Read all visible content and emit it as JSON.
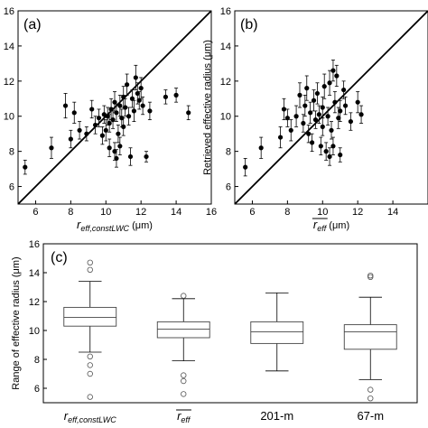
{
  "chart_data": [
    {
      "panel": "(a)",
      "type": "scatter",
      "xlabel": {
        "main": "r",
        "sub": "eff,constLWC",
        "unit": " (μm)"
      },
      "ylabel": "",
      "xlim": [
        5,
        16
      ],
      "ylim": [
        5,
        16
      ],
      "xticks": [
        6,
        8,
        10,
        12,
        14,
        16
      ],
      "yticks": [
        6,
        8,
        10,
        12,
        14,
        16
      ],
      "one_to_one_line": true,
      "points": [
        {
          "x": 5.4,
          "y": 7.1,
          "e": 0.4
        },
        {
          "x": 6.9,
          "y": 8.2,
          "e": 0.6
        },
        {
          "x": 7.7,
          "y": 10.6,
          "e": 0.7
        },
        {
          "x": 8.0,
          "y": 8.7,
          "e": 0.5
        },
        {
          "x": 8.2,
          "y": 10.2,
          "e": 0.6
        },
        {
          "x": 8.5,
          "y": 9.2,
          "e": 0.5
        },
        {
          "x": 8.9,
          "y": 9.0,
          "e": 0.4
        },
        {
          "x": 9.2,
          "y": 10.4,
          "e": 0.5
        },
        {
          "x": 9.4,
          "y": 9.5,
          "e": 0.5
        },
        {
          "x": 9.6,
          "y": 9.9,
          "e": 0.5
        },
        {
          "x": 9.8,
          "y": 8.9,
          "e": 0.5
        },
        {
          "x": 9.9,
          "y": 10.1,
          "e": 0.5
        },
        {
          "x": 10.0,
          "y": 9.2,
          "e": 0.6
        },
        {
          "x": 10.1,
          "y": 10.0,
          "e": 0.5
        },
        {
          "x": 10.2,
          "y": 8.2,
          "e": 0.5
        },
        {
          "x": 10.2,
          "y": 9.6,
          "e": 0.5
        },
        {
          "x": 10.3,
          "y": 10.4,
          "e": 0.6
        },
        {
          "x": 10.4,
          "y": 9.8,
          "e": 0.5
        },
        {
          "x": 10.5,
          "y": 10.8,
          "e": 0.6
        },
        {
          "x": 10.5,
          "y": 8.0,
          "e": 0.5
        },
        {
          "x": 10.6,
          "y": 7.6,
          "e": 0.5
        },
        {
          "x": 10.6,
          "y": 10.2,
          "e": 0.5
        },
        {
          "x": 10.7,
          "y": 9.0,
          "e": 0.5
        },
        {
          "x": 10.8,
          "y": 10.6,
          "e": 0.6
        },
        {
          "x": 10.8,
          "y": 8.3,
          "e": 0.5
        },
        {
          "x": 10.9,
          "y": 9.9,
          "e": 0.5
        },
        {
          "x": 11.0,
          "y": 11.1,
          "e": 0.6
        },
        {
          "x": 11.0,
          "y": 9.4,
          "e": 0.5
        },
        {
          "x": 11.1,
          "y": 10.5,
          "e": 0.5
        },
        {
          "x": 11.2,
          "y": 11.8,
          "e": 0.6
        },
        {
          "x": 11.3,
          "y": 10.0,
          "e": 0.5
        },
        {
          "x": 11.4,
          "y": 7.7,
          "e": 0.5
        },
        {
          "x": 11.5,
          "y": 11.0,
          "e": 0.5
        },
        {
          "x": 11.6,
          "y": 10.3,
          "e": 0.6
        },
        {
          "x": 11.7,
          "y": 12.2,
          "e": 0.7
        },
        {
          "x": 11.8,
          "y": 11.3,
          "e": 0.6
        },
        {
          "x": 11.9,
          "y": 10.9,
          "e": 0.5
        },
        {
          "x": 12.0,
          "y": 11.6,
          "e": 0.6
        },
        {
          "x": 12.1,
          "y": 10.6,
          "e": 0.5
        },
        {
          "x": 12.3,
          "y": 7.7,
          "e": 0.3
        },
        {
          "x": 12.5,
          "y": 10.3,
          "e": 0.5
        },
        {
          "x": 13.4,
          "y": 11.1,
          "e": 0.4
        },
        {
          "x": 14.0,
          "y": 11.2,
          "e": 0.4
        },
        {
          "x": 14.7,
          "y": 10.2,
          "e": 0.4
        }
      ]
    },
    {
      "panel": "(b)",
      "type": "scatter",
      "xlabel": {
        "main": "r",
        "sub": "eff",
        "unit": " (μm)",
        "overbar": true
      },
      "ylabel": "Retrieved effective radius (μm)",
      "xlim": [
        5,
        16
      ],
      "ylim": [
        5,
        16
      ],
      "xticks": [
        6,
        8,
        10,
        12,
        14
      ],
      "yticks": [
        6,
        8,
        10,
        12,
        14,
        16
      ],
      "one_to_one_line": true,
      "points": [
        {
          "x": 5.6,
          "y": 7.1,
          "e": 0.5
        },
        {
          "x": 6.5,
          "y": 8.2,
          "e": 0.6
        },
        {
          "x": 7.6,
          "y": 8.8,
          "e": 0.6
        },
        {
          "x": 7.8,
          "y": 10.4,
          "e": 0.6
        },
        {
          "x": 8.0,
          "y": 9.9,
          "e": 0.5
        },
        {
          "x": 8.2,
          "y": 9.2,
          "e": 0.6
        },
        {
          "x": 8.5,
          "y": 10.0,
          "e": 0.6
        },
        {
          "x": 8.7,
          "y": 11.2,
          "e": 0.7
        },
        {
          "x": 8.9,
          "y": 9.6,
          "e": 0.5
        },
        {
          "x": 9.0,
          "y": 10.6,
          "e": 0.6
        },
        {
          "x": 9.1,
          "y": 11.6,
          "e": 0.7
        },
        {
          "x": 9.2,
          "y": 9.0,
          "e": 0.5
        },
        {
          "x": 9.3,
          "y": 10.2,
          "e": 0.6
        },
        {
          "x": 9.5,
          "y": 10.9,
          "e": 0.6
        },
        {
          "x": 9.6,
          "y": 9.8,
          "e": 0.5
        },
        {
          "x": 9.7,
          "y": 11.3,
          "e": 0.6
        },
        {
          "x": 9.8,
          "y": 10.1,
          "e": 0.5
        },
        {
          "x": 9.9,
          "y": 8.3,
          "e": 0.5
        },
        {
          "x": 10.0,
          "y": 10.5,
          "e": 0.6
        },
        {
          "x": 10.0,
          "y": 9.4,
          "e": 0.5
        },
        {
          "x": 10.1,
          "y": 11.7,
          "e": 0.7
        },
        {
          "x": 10.2,
          "y": 8.0,
          "e": 0.5
        },
        {
          "x": 10.3,
          "y": 10.0,
          "e": 0.5
        },
        {
          "x": 10.4,
          "y": 7.7,
          "e": 0.5
        },
        {
          "x": 10.4,
          "y": 11.9,
          "e": 0.7
        },
        {
          "x": 10.5,
          "y": 9.2,
          "e": 0.5
        },
        {
          "x": 10.6,
          "y": 12.6,
          "e": 0.6
        },
        {
          "x": 10.7,
          "y": 10.8,
          "e": 0.6
        },
        {
          "x": 10.8,
          "y": 12.3,
          "e": 0.6
        },
        {
          "x": 10.9,
          "y": 9.9,
          "e": 0.6
        },
        {
          "x": 11.0,
          "y": 10.3,
          "e": 0.6
        },
        {
          "x": 11.0,
          "y": 7.8,
          "e": 0.4
        },
        {
          "x": 11.2,
          "y": 11.5,
          "e": 0.5
        },
        {
          "x": 11.3,
          "y": 10.6,
          "e": 0.5
        },
        {
          "x": 11.6,
          "y": 9.7,
          "e": 0.5
        },
        {
          "x": 12.0,
          "y": 10.8,
          "e": 0.6
        },
        {
          "x": 12.2,
          "y": 10.1,
          "e": 0.5
        },
        {
          "x": 10.6,
          "y": 8.3,
          "e": 0.5
        },
        {
          "x": 9.4,
          "y": 8.5,
          "e": 0.5
        }
      ]
    },
    {
      "panel": "(c)",
      "type": "box",
      "ylabel": "Range of effective radius (μm)",
      "ylim": [
        5,
        16
      ],
      "yticks": [
        6,
        8,
        10,
        12,
        14,
        16
      ],
      "boxes": [
        {
          "label": {
            "main": "r",
            "sub": "eff,constLWC"
          },
          "whisker_low": 8.5,
          "q1": 10.3,
          "median": 10.9,
          "q3": 11.6,
          "whisker_high": 13.4,
          "outliers": [
            5.4,
            7.0,
            7.6,
            8.2,
            14.2,
            14.7
          ]
        },
        {
          "label": {
            "main": "r",
            "sub": "eff",
            "overbar": true
          },
          "whisker_low": 7.9,
          "q1": 9.5,
          "median": 10.1,
          "q3": 10.6,
          "whisker_high": 12.2,
          "outliers": [
            5.6,
            6.5,
            6.9,
            12.4
          ]
        },
        {
          "label": {
            "main": "201-m"
          },
          "whisker_low": 7.2,
          "q1": 9.1,
          "median": 9.9,
          "q3": 10.6,
          "whisker_high": 12.6,
          "outliers": []
        },
        {
          "label": {
            "main": "67-m"
          },
          "whisker_low": 6.6,
          "q1": 8.7,
          "median": 9.9,
          "q3": 10.4,
          "whisker_high": 12.3,
          "outliers": [
            5.3,
            5.9,
            13.7,
            13.8
          ]
        }
      ]
    }
  ]
}
